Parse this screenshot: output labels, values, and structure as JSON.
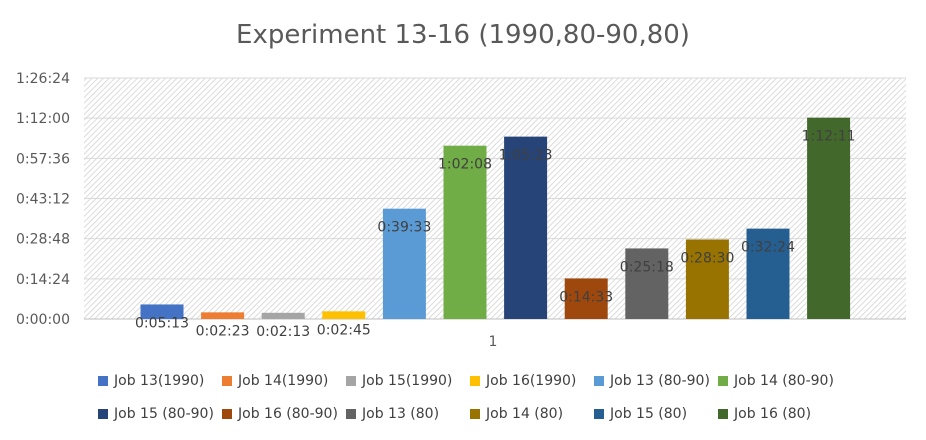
{
  "chart_data": {
    "type": "bar",
    "title": "Experiment 13-16 (1990,80-90,80)",
    "categories": [
      "1"
    ],
    "y_ticks": [
      "0:00:00",
      "0:14:24",
      "0:28:48",
      "0:43:12",
      "0:57:36",
      "1:12:00",
      "1:26:24"
    ],
    "ylim_seconds": [
      0,
      5184
    ],
    "grid": true,
    "legend_position": "bottom",
    "series": [
      {
        "name": "Job 13(1990)",
        "label": "0:05:13",
        "value_seconds": 313,
        "color": "#4472C4"
      },
      {
        "name": "Job 14(1990)",
        "label": "0:02:23",
        "value_seconds": 143,
        "color": "#ED7D31"
      },
      {
        "name": "Job 15(1990)",
        "label": "0:02:13",
        "value_seconds": 133,
        "color": "#A5A5A5"
      },
      {
        "name": "Job 16(1990)",
        "label": "0:02:45",
        "value_seconds": 165,
        "color": "#FFC000"
      },
      {
        "name": "Job 13 (80-90)",
        "label": "0:39:33",
        "value_seconds": 2373,
        "color": "#5B9BD5"
      },
      {
        "name": "Job 14 (80-90)",
        "label": "1:02:08",
        "value_seconds": 3728,
        "color": "#70AD47"
      },
      {
        "name": "Job 15 (80-90)",
        "label": "1:05:23",
        "value_seconds": 3923,
        "color": "#264478"
      },
      {
        "name": "Job 16 (80-90)",
        "label": "0:14:33",
        "value_seconds": 873,
        "color": "#9E480E"
      },
      {
        "name": "Job 13 (80)",
        "label": "0:25:18",
        "value_seconds": 1518,
        "color": "#636363"
      },
      {
        "name": "Job 14 (80)",
        "label": "0:28:30",
        "value_seconds": 1710,
        "color": "#997300"
      },
      {
        "name": "Job 15 (80)",
        "label": "0:32:24",
        "value_seconds": 1944,
        "color": "#255E91"
      },
      {
        "name": "Job 16 (80)",
        "label": "1:12:11",
        "value_seconds": 4331,
        "color": "#43682B"
      }
    ]
  }
}
